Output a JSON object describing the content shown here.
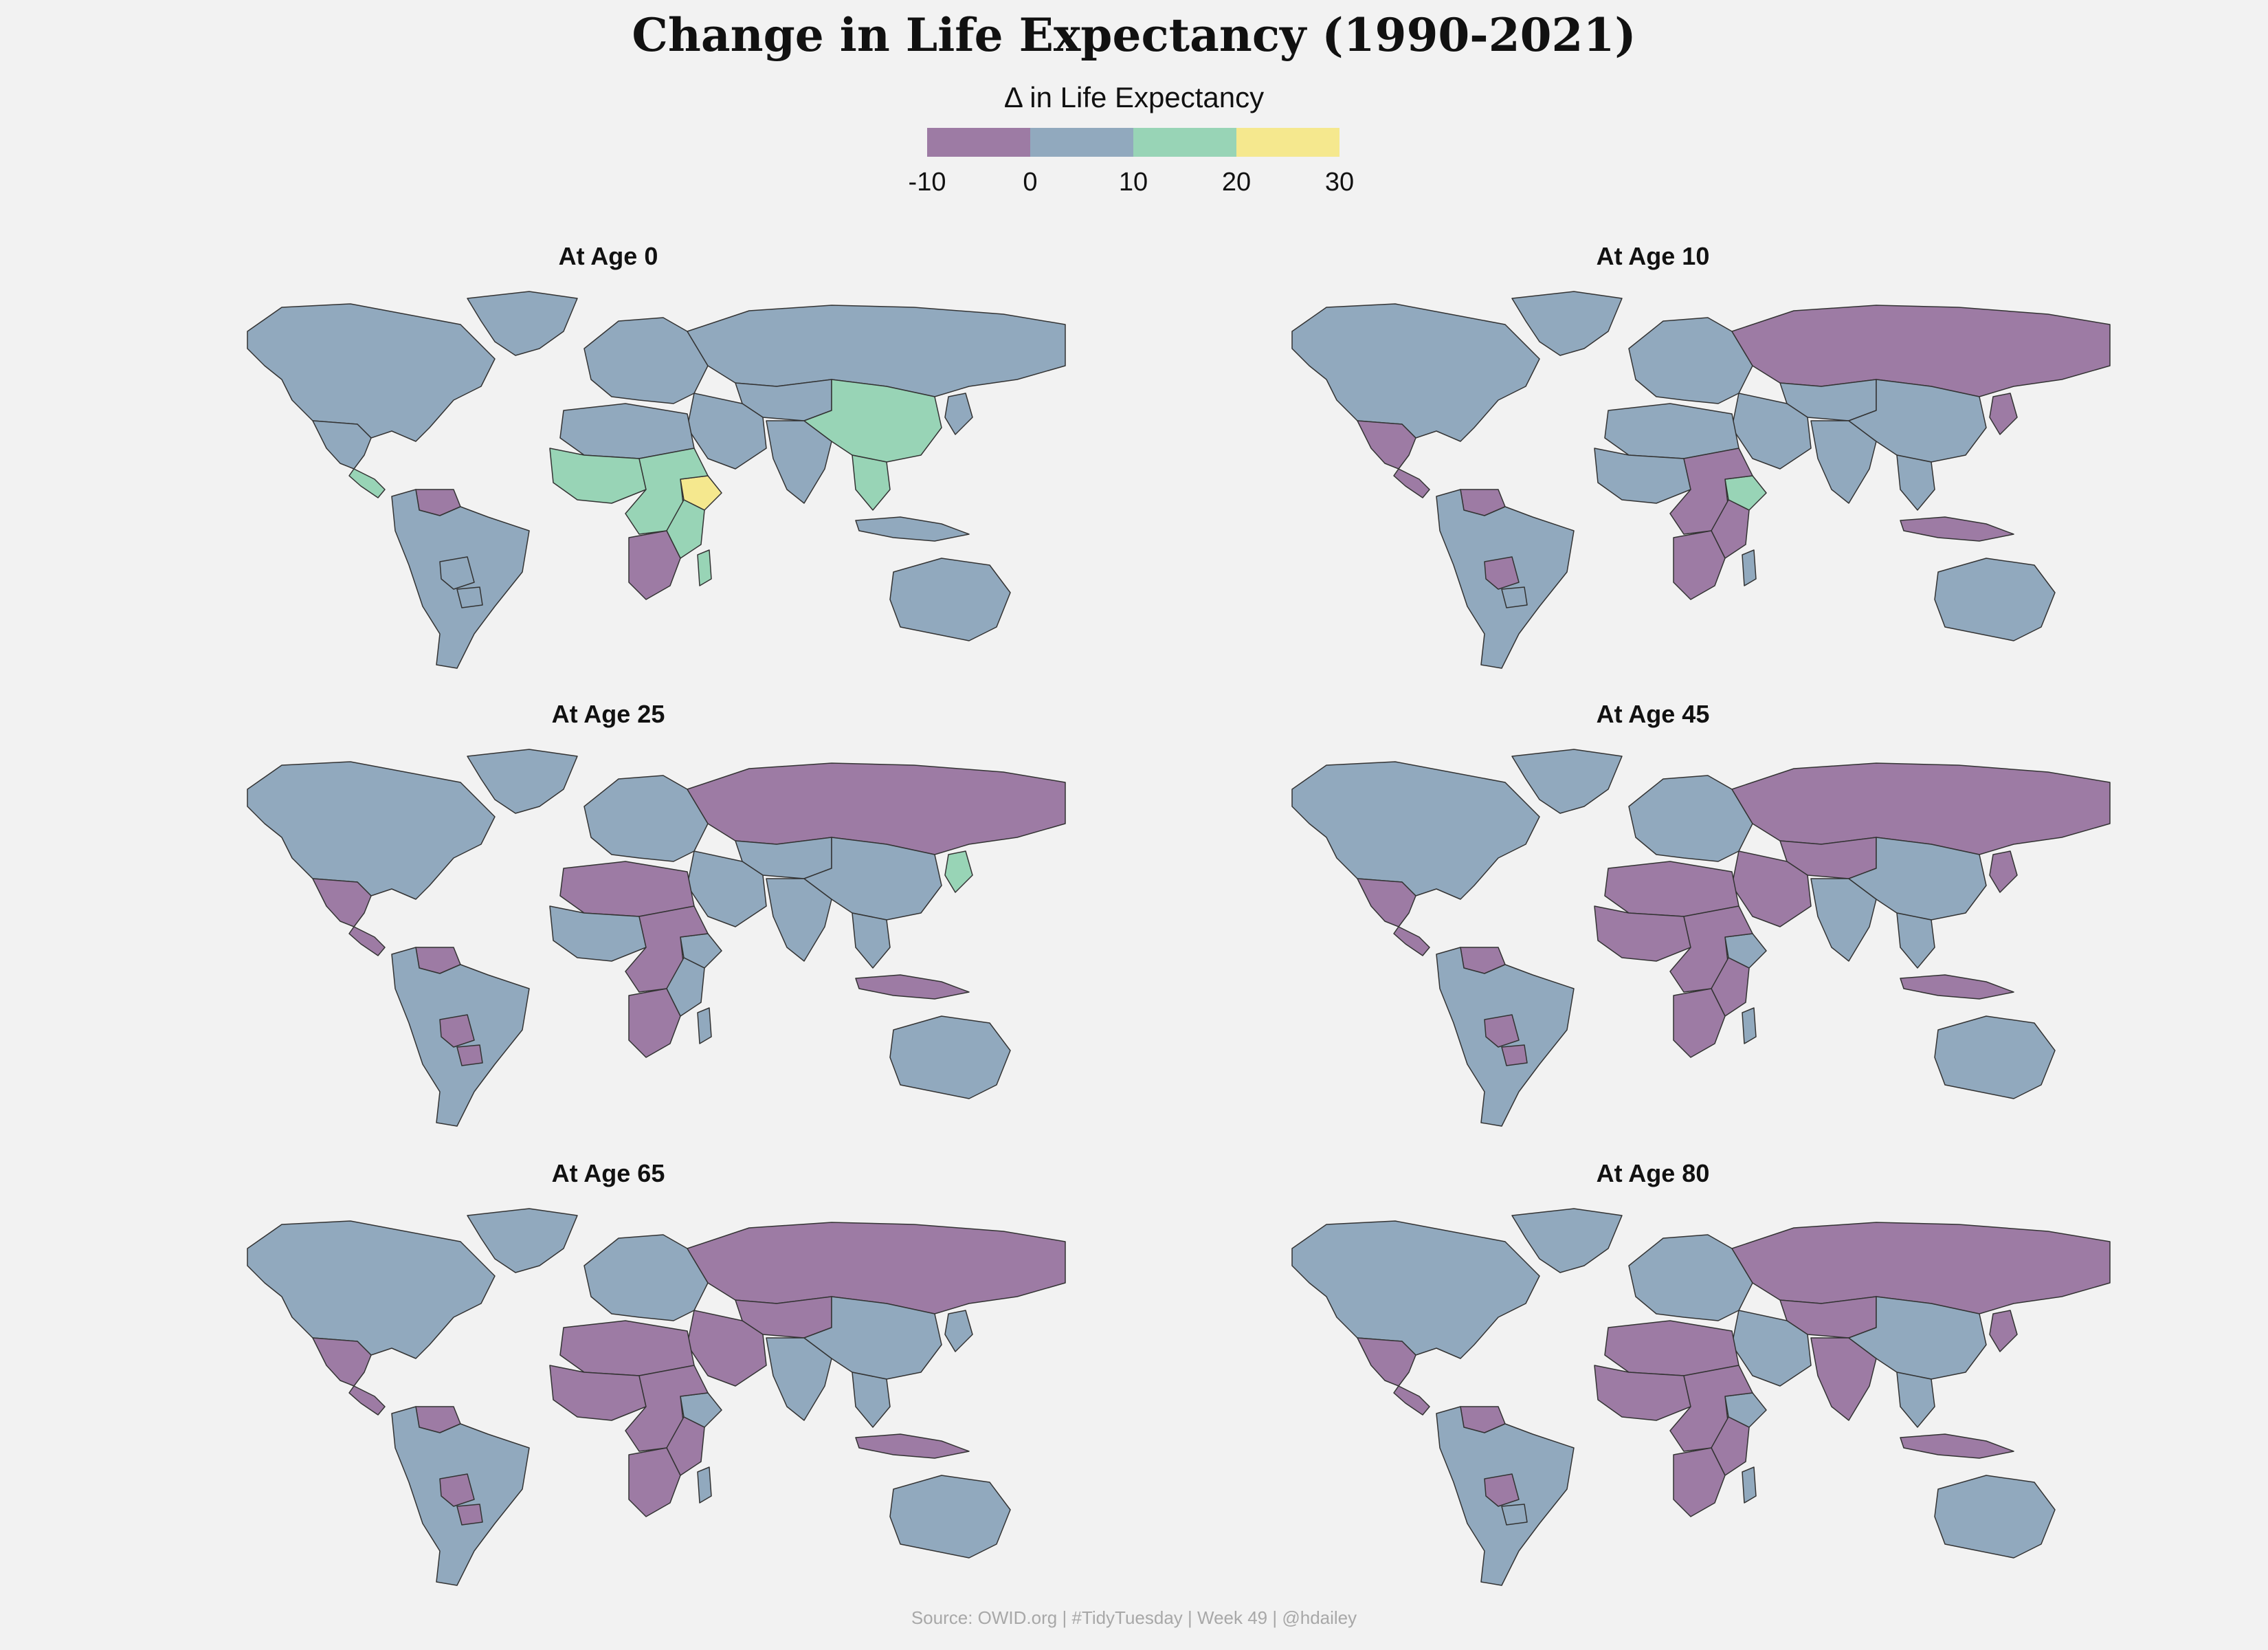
{
  "title": "Change in Life Expectancy (1990-2021)",
  "legend": {
    "title": "Δ in Life Expectancy",
    "ticks": [
      "-10",
      "0",
      "10",
      "20",
      "30"
    ],
    "colors": [
      "#9d7ba4",
      "#91a9be",
      "#98d4b6",
      "#f5e88e"
    ]
  },
  "colors": {
    "background": "#f2f2f2",
    "border": "#333333",
    "negative": "#9d7ba4",
    "zero_to_10": "#91a9be",
    "ten_to_20": "#98d4b6",
    "twenty_to_30": "#f5e88e"
  },
  "panels": [
    {
      "title": "At Age 0"
    },
    {
      "title": "At Age 10"
    },
    {
      "title": "At Age 25"
    },
    {
      "title": "At Age 45"
    },
    {
      "title": "At Age 65"
    },
    {
      "title": "At Age 80"
    }
  ],
  "map_data": {
    "regions": [
      "north-america",
      "greenland",
      "mexico",
      "central-america",
      "venezuela",
      "south-america",
      "bolivia",
      "paraguay",
      "europe",
      "russia",
      "central-asia",
      "middle-east",
      "south-asia",
      "china",
      "southeast-asia",
      "indonesia",
      "north-africa",
      "west-africa",
      "ethiopia",
      "central-africa",
      "east-africa",
      "southern-africa",
      "madagascar",
      "australia",
      "japan"
    ],
    "categories_by_panel": [
      {
        "north-america": 1,
        "greenland": 1,
        "mexico": 1,
        "central-america": 2,
        "venezuela": 0,
        "south-america": 1,
        "bolivia": 1,
        "paraguay": 1,
        "europe": 1,
        "russia": 1,
        "central-asia": 1,
        "middle-east": 1,
        "south-asia": 1,
        "china": 2,
        "southeast-asia": 2,
        "indonesia": 1,
        "north-africa": 1,
        "west-africa": 2,
        "ethiopia": 3,
        "central-africa": 2,
        "east-africa": 2,
        "southern-africa": 0,
        "madagascar": 2,
        "australia": 1,
        "japan": 1
      },
      {
        "north-america": 1,
        "greenland": 1,
        "mexico": 0,
        "central-america": 0,
        "venezuela": 0,
        "south-america": 1,
        "bolivia": 0,
        "paraguay": 1,
        "europe": 1,
        "russia": 0,
        "central-asia": 1,
        "middle-east": 1,
        "south-asia": 1,
        "china": 1,
        "southeast-asia": 1,
        "indonesia": 0,
        "north-africa": 1,
        "west-africa": 1,
        "ethiopia": 2,
        "central-africa": 0,
        "east-africa": 0,
        "southern-africa": 0,
        "madagascar": 1,
        "australia": 1,
        "japan": 0
      },
      {
        "north-america": 1,
        "greenland": 1,
        "mexico": 0,
        "central-america": 0,
        "venezuela": 0,
        "south-america": 1,
        "bolivia": 0,
        "paraguay": 0,
        "europe": 1,
        "russia": 0,
        "central-asia": 1,
        "middle-east": 1,
        "south-asia": 1,
        "china": 1,
        "southeast-asia": 1,
        "indonesia": 0,
        "north-africa": 0,
        "west-africa": 1,
        "ethiopia": 1,
        "central-africa": 0,
        "east-africa": 1,
        "southern-africa": 0,
        "madagascar": 1,
        "australia": 1,
        "japan": 2
      },
      {
        "north-america": 1,
        "greenland": 1,
        "mexico": 0,
        "central-america": 0,
        "venezuela": 0,
        "south-america": 1,
        "bolivia": 0,
        "paraguay": 0,
        "europe": 1,
        "russia": 0,
        "central-asia": 0,
        "middle-east": 0,
        "south-asia": 1,
        "china": 1,
        "southeast-asia": 1,
        "indonesia": 0,
        "north-africa": 0,
        "west-africa": 0,
        "ethiopia": 1,
        "central-africa": 0,
        "east-africa": 0,
        "southern-africa": 0,
        "madagascar": 1,
        "australia": 1,
        "japan": 0
      },
      {
        "north-america": 1,
        "greenland": 1,
        "mexico": 0,
        "central-america": 0,
        "venezuela": 0,
        "south-america": 1,
        "bolivia": 0,
        "paraguay": 0,
        "europe": 1,
        "russia": 0,
        "central-asia": 0,
        "middle-east": 0,
        "south-asia": 1,
        "china": 1,
        "southeast-asia": 1,
        "indonesia": 0,
        "north-africa": 0,
        "west-africa": 0,
        "ethiopia": 1,
        "central-africa": 0,
        "east-africa": 0,
        "southern-africa": 0,
        "madagascar": 1,
        "australia": 1,
        "japan": 1
      },
      {
        "north-america": 1,
        "greenland": 1,
        "mexico": 0,
        "central-america": 0,
        "venezuela": 0,
        "south-america": 1,
        "bolivia": 0,
        "paraguay": 1,
        "europe": 1,
        "russia": 0,
        "central-asia": 0,
        "middle-east": 1,
        "south-asia": 0,
        "china": 1,
        "southeast-asia": 1,
        "indonesia": 0,
        "north-africa": 0,
        "west-africa": 0,
        "ethiopia": 1,
        "central-africa": 0,
        "east-africa": 0,
        "southern-africa": 0,
        "madagascar": 1,
        "australia": 1,
        "japan": 0
      }
    ]
  },
  "caption": "Source: OWID.org | #TidyTuesday | Week 49 | @hdailey"
}
